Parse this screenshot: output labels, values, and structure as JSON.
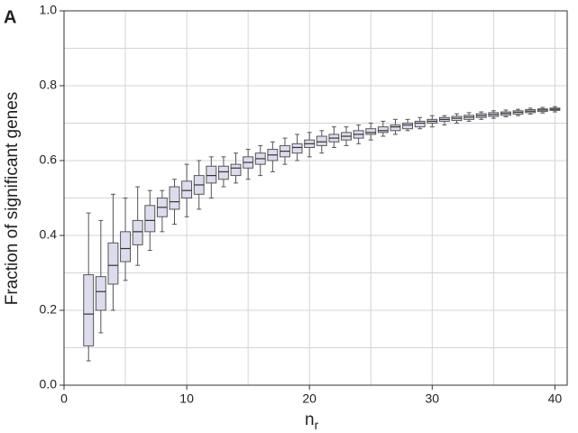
{
  "chart_data": {
    "type": "box",
    "panel_label": "A",
    "y_label": "Fraction of significant genes",
    "x_label": "n",
    "x_label_subscript": "r",
    "xlim": [
      0,
      41
    ],
    "ylim": [
      0,
      1
    ],
    "xticks": [
      0,
      10,
      20,
      30,
      40
    ],
    "x_minor_ticks": [
      5,
      15,
      25,
      35
    ],
    "yticks": [
      {
        "value": 0,
        "label": "0.0"
      },
      {
        "value": 0.2,
        "label": "0.2"
      },
      {
        "value": 0.4,
        "label": "0.4"
      },
      {
        "value": 0.6,
        "label": "0.6"
      },
      {
        "value": 0.8,
        "label": "0.8"
      },
      {
        "value": 1,
        "label": "1.0"
      }
    ],
    "y_minor_ticks": [
      0.1,
      0.3,
      0.5,
      0.7,
      0.9
    ],
    "grid": true,
    "color": "#dcdcee",
    "edge_color": "#555555",
    "x": [
      2,
      3,
      4,
      5,
      6,
      7,
      8,
      9,
      10,
      11,
      12,
      13,
      14,
      15,
      16,
      17,
      18,
      19,
      20,
      21,
      22,
      23,
      24,
      25,
      26,
      27,
      28,
      29,
      30,
      31,
      32,
      33,
      34,
      35,
      36,
      37,
      38,
      39,
      40
    ],
    "whisker_low": [
      0.065,
      0.14,
      0.2,
      0.28,
      0.32,
      0.36,
      0.41,
      0.43,
      0.45,
      0.47,
      0.5,
      0.53,
      0.54,
      0.55,
      0.56,
      0.57,
      0.59,
      0.6,
      0.61,
      0.62,
      0.635,
      0.64,
      0.645,
      0.655,
      0.665,
      0.67,
      0.68,
      0.685,
      0.69,
      0.695,
      0.7,
      0.705,
      0.71,
      0.713,
      0.717,
      0.72,
      0.724,
      0.727,
      0.73
    ],
    "q1": [
      0.105,
      0.2,
      0.27,
      0.33,
      0.375,
      0.41,
      0.45,
      0.47,
      0.5,
      0.51,
      0.54,
      0.55,
      0.56,
      0.58,
      0.59,
      0.6,
      0.61,
      0.62,
      0.635,
      0.64,
      0.65,
      0.655,
      0.66,
      0.67,
      0.675,
      0.68,
      0.685,
      0.69,
      0.7,
      0.705,
      0.707,
      0.71,
      0.715,
      0.718,
      0.721,
      0.724,
      0.728,
      0.731,
      0.734
    ],
    "median": [
      0.19,
      0.25,
      0.32,
      0.365,
      0.41,
      0.44,
      0.475,
      0.49,
      0.52,
      0.535,
      0.56,
      0.57,
      0.58,
      0.595,
      0.605,
      0.615,
      0.625,
      0.635,
      0.645,
      0.65,
      0.66,
      0.665,
      0.67,
      0.675,
      0.68,
      0.69,
      0.695,
      0.7,
      0.705,
      0.71,
      0.713,
      0.716,
      0.72,
      0.723,
      0.726,
      0.729,
      0.732,
      0.735,
      0.737
    ],
    "q3": [
      0.295,
      0.29,
      0.38,
      0.41,
      0.44,
      0.48,
      0.5,
      0.53,
      0.545,
      0.56,
      0.585,
      0.585,
      0.59,
      0.61,
      0.62,
      0.63,
      0.64,
      0.645,
      0.655,
      0.665,
      0.67,
      0.675,
      0.68,
      0.685,
      0.69,
      0.695,
      0.7,
      0.705,
      0.71,
      0.715,
      0.718,
      0.721,
      0.725,
      0.728,
      0.73,
      0.733,
      0.736,
      0.738,
      0.74
    ],
    "whisker_high": [
      0.46,
      0.44,
      0.51,
      0.5,
      0.53,
      0.52,
      0.52,
      0.55,
      0.59,
      0.6,
      0.61,
      0.61,
      0.62,
      0.63,
      0.64,
      0.65,
      0.66,
      0.67,
      0.675,
      0.68,
      0.69,
      0.69,
      0.695,
      0.7,
      0.705,
      0.71,
      0.71,
      0.715,
      0.72,
      0.72,
      0.725,
      0.728,
      0.73,
      0.733,
      0.735,
      0.737,
      0.74,
      0.742,
      0.744
    ]
  }
}
